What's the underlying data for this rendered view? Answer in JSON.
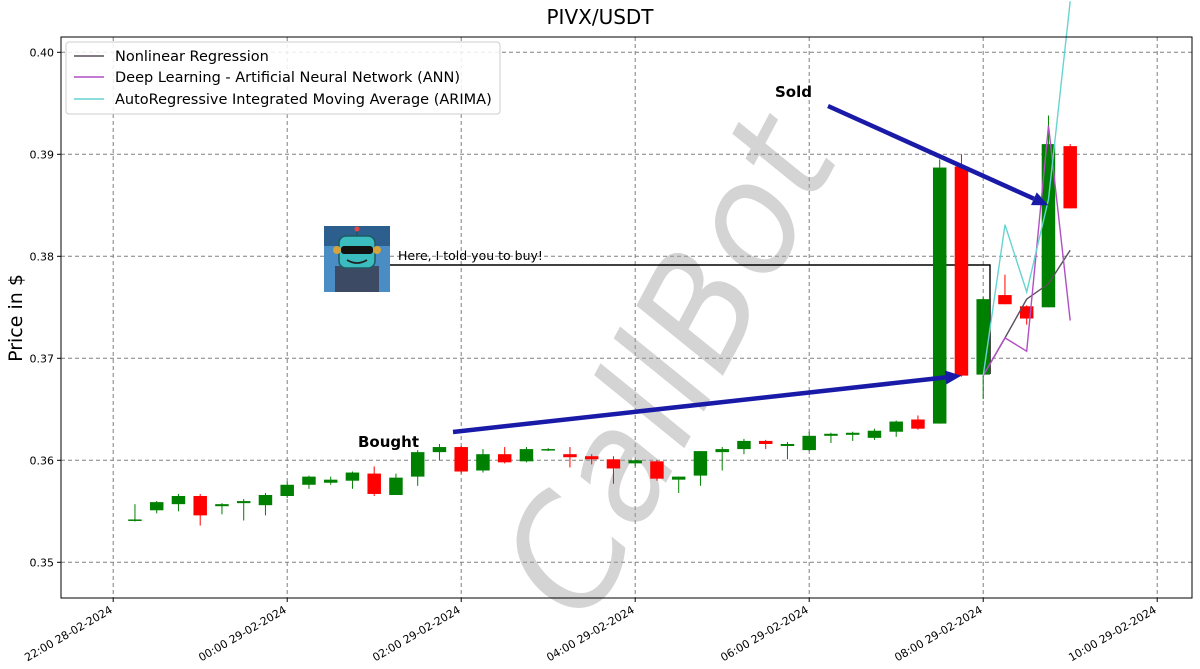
{
  "chart_data": {
    "type": "candlestick",
    "title": "PIVX/USDT",
    "xlabel": "",
    "ylabel": "Price in $",
    "ylim": [
      0.3465,
      0.4015
    ],
    "xlim": [
      "28-02-2024 21:24",
      "29-02-2024 10:24"
    ],
    "yticks": [
      "0.35",
      "0.36",
      "0.37",
      "0.38",
      "0.39",
      "0.40"
    ],
    "xticks": [
      "22:00 28-02-2024",
      "00:00 29-02-2024",
      "02:00 29-02-2024",
      "04:00 29-02-2024",
      "06:00 29-02-2024",
      "08:00 29-02-2024",
      "10:00 29-02-2024"
    ],
    "grid": true,
    "legend_position": "top-left",
    "candle_interval_minutes": 15,
    "candle_colors": {
      "up": "#008000",
      "down": "#ff0000"
    },
    "candles": [
      {
        "t": "28-02-2024 22:15",
        "o": 0.3541,
        "h": 0.3557,
        "l": 0.354,
        "c": 0.3542
      },
      {
        "t": "28-02-2024 22:30",
        "o": 0.3551,
        "h": 0.356,
        "l": 0.3548,
        "c": 0.3559
      },
      {
        "t": "28-02-2024 22:45",
        "o": 0.3557,
        "h": 0.3567,
        "l": 0.355,
        "c": 0.3565
      },
      {
        "t": "28-02-2024 23:00",
        "o": 0.3565,
        "h": 0.3567,
        "l": 0.3536,
        "c": 0.3546
      },
      {
        "t": "28-02-2024 23:15",
        "o": 0.3555,
        "h": 0.3558,
        "l": 0.3547,
        "c": 0.3557
      },
      {
        "t": "28-02-2024 23:30",
        "o": 0.3558,
        "h": 0.3562,
        "l": 0.3541,
        "c": 0.356
      },
      {
        "t": "28-02-2024 23:45",
        "o": 0.3556,
        "h": 0.3568,
        "l": 0.3546,
        "c": 0.3566
      },
      {
        "t": "29-02-2024 00:00",
        "o": 0.3565,
        "h": 0.3579,
        "l": 0.3563,
        "c": 0.3576
      },
      {
        "t": "29-02-2024 00:15",
        "o": 0.3576,
        "h": 0.3585,
        "l": 0.3572,
        "c": 0.3584
      },
      {
        "t": "29-02-2024 00:30",
        "o": 0.3578,
        "h": 0.3584,
        "l": 0.3576,
        "c": 0.3581
      },
      {
        "t": "29-02-2024 00:45",
        "o": 0.358,
        "h": 0.3589,
        "l": 0.3572,
        "c": 0.3588
      },
      {
        "t": "29-02-2024 01:00",
        "o": 0.3587,
        "h": 0.3594,
        "l": 0.3565,
        "c": 0.3567
      },
      {
        "t": "29-02-2024 01:15",
        "o": 0.3566,
        "h": 0.3587,
        "l": 0.3566,
        "c": 0.3583
      },
      {
        "t": "29-02-2024 01:30",
        "o": 0.3584,
        "h": 0.361,
        "l": 0.3575,
        "c": 0.3608
      },
      {
        "t": "29-02-2024 01:45",
        "o": 0.3608,
        "h": 0.3616,
        "l": 0.36,
        "c": 0.3613
      },
      {
        "t": "29-02-2024 02:00",
        "o": 0.3613,
        "h": 0.3614,
        "l": 0.3587,
        "c": 0.3589
      },
      {
        "t": "29-02-2024 02:15",
        "o": 0.359,
        "h": 0.3611,
        "l": 0.3588,
        "c": 0.3606
      },
      {
        "t": "29-02-2024 02:30",
        "o": 0.3606,
        "h": 0.3613,
        "l": 0.3597,
        "c": 0.3598
      },
      {
        "t": "29-02-2024 02:45",
        "o": 0.3599,
        "h": 0.3613,
        "l": 0.3598,
        "c": 0.3611
      },
      {
        "t": "29-02-2024 03:00",
        "o": 0.361,
        "h": 0.3612,
        "l": 0.3609,
        "c": 0.3611
      },
      {
        "t": "29-02-2024 03:15",
        "o": 0.3606,
        "h": 0.3613,
        "l": 0.3593,
        "c": 0.3603
      },
      {
        "t": "29-02-2024 03:30",
        "o": 0.3604,
        "h": 0.3606,
        "l": 0.3596,
        "c": 0.3601
      },
      {
        "t": "29-02-2024 03:45",
        "o": 0.3601,
        "h": 0.3604,
        "l": 0.3577,
        "c": 0.3592
      },
      {
        "t": "29-02-2024 04:00",
        "o": 0.3597,
        "h": 0.3601,
        "l": 0.3594,
        "c": 0.36
      },
      {
        "t": "29-02-2024 04:15",
        "o": 0.3599,
        "h": 0.36,
        "l": 0.358,
        "c": 0.3582
      },
      {
        "t": "29-02-2024 04:30",
        "o": 0.3581,
        "h": 0.3584,
        "l": 0.3568,
        "c": 0.3584
      },
      {
        "t": "29-02-2024 04:45",
        "o": 0.3585,
        "h": 0.3609,
        "l": 0.3575,
        "c": 0.3609
      },
      {
        "t": "29-02-2024 05:00",
        "o": 0.3608,
        "h": 0.3613,
        "l": 0.359,
        "c": 0.3611
      },
      {
        "t": "29-02-2024 05:15",
        "o": 0.3611,
        "h": 0.3621,
        "l": 0.3606,
        "c": 0.3619
      },
      {
        "t": "29-02-2024 05:30",
        "o": 0.3619,
        "h": 0.362,
        "l": 0.3611,
        "c": 0.3616
      },
      {
        "t": "29-02-2024 05:45",
        "o": 0.3614,
        "h": 0.3618,
        "l": 0.3601,
        "c": 0.3616
      },
      {
        "t": "29-02-2024 06:00",
        "o": 0.361,
        "h": 0.3628,
        "l": 0.3609,
        "c": 0.3624
      },
      {
        "t": "29-02-2024 06:15",
        "o": 0.3624,
        "h": 0.3627,
        "l": 0.3617,
        "c": 0.3626
      },
      {
        "t": "29-02-2024 06:30",
        "o": 0.3625,
        "h": 0.3628,
        "l": 0.3619,
        "c": 0.3627
      },
      {
        "t": "29-02-2024 06:45",
        "o": 0.3622,
        "h": 0.3631,
        "l": 0.362,
        "c": 0.3629
      },
      {
        "t": "29-02-2024 07:00",
        "o": 0.3628,
        "h": 0.3639,
        "l": 0.3623,
        "c": 0.3638
      },
      {
        "t": "29-02-2024 07:15",
        "o": 0.364,
        "h": 0.3644,
        "l": 0.363,
        "c": 0.3631
      },
      {
        "t": "29-02-2024 07:30",
        "o": 0.3636,
        "h": 0.3895,
        "l": 0.3636,
        "c": 0.3887
      },
      {
        "t": "29-02-2024 07:45",
        "o": 0.3888,
        "h": 0.39,
        "l": 0.3682,
        "c": 0.3683
      },
      {
        "t": "29-02-2024 08:00",
        "o": 0.3684,
        "h": 0.376,
        "l": 0.366,
        "c": 0.3758
      },
      {
        "t": "29-02-2024 08:15",
        "o": 0.3762,
        "h": 0.3782,
        "l": 0.3753,
        "c": 0.3753
      },
      {
        "t": "29-02-2024 08:30",
        "o": 0.3751,
        "h": 0.3752,
        "l": 0.3733,
        "c": 0.3739
      },
      {
        "t": "29-02-2024 08:45",
        "o": 0.375,
        "h": 0.3938,
        "l": 0.375,
        "c": 0.391
      },
      {
        "t": "29-02-2024 09:00",
        "o": 0.3908,
        "h": 0.391,
        "l": 0.3847,
        "c": 0.3847
      }
    ],
    "series": [
      {
        "name": "Nonlinear Regression",
        "color": "#5a4f5f",
        "points": [
          [
            "29-02-2024 08:00",
            0.3683
          ],
          [
            "29-02-2024 08:15",
            0.372
          ],
          [
            "29-02-2024 08:30",
            0.3758
          ],
          [
            "29-02-2024 08:45",
            0.3773
          ],
          [
            "29-02-2024 09:00",
            0.3806
          ]
        ]
      },
      {
        "name": "Deep Learning - Artificial Neural Network (ANN)",
        "color": "#b04fc4",
        "points": [
          [
            "29-02-2024 08:00",
            0.3683
          ],
          [
            "29-02-2024 08:15",
            0.372
          ],
          [
            "29-02-2024 08:30",
            0.3707
          ],
          [
            "29-02-2024 08:45",
            0.3928
          ],
          [
            "29-02-2024 09:00",
            0.3737
          ]
        ]
      },
      {
        "name": "AutoRegressive Integrated Moving Average (ARIMA)",
        "color": "#66d4d0",
        "points": [
          [
            "29-02-2024 08:00",
            0.3683
          ],
          [
            "29-02-2024 08:15",
            0.3831
          ],
          [
            "29-02-2024 08:30",
            0.3765
          ],
          [
            "29-02-2024 08:45",
            0.3856
          ],
          [
            "29-02-2024 09:00",
            0.405
          ]
        ]
      }
    ],
    "annotations": [
      {
        "name": "bought",
        "text": "Bought",
        "arrow_target": [
          "29-02-2024 07:45",
          0.3683
        ]
      },
      {
        "name": "sold",
        "text": "Sold",
        "arrow_target": [
          "29-02-2024 08:45",
          0.385
        ]
      },
      {
        "name": "callout",
        "text": "Here, I told you to buy!"
      }
    ],
    "watermark": "CallBot",
    "arrow_color": "#1a1aa8"
  }
}
